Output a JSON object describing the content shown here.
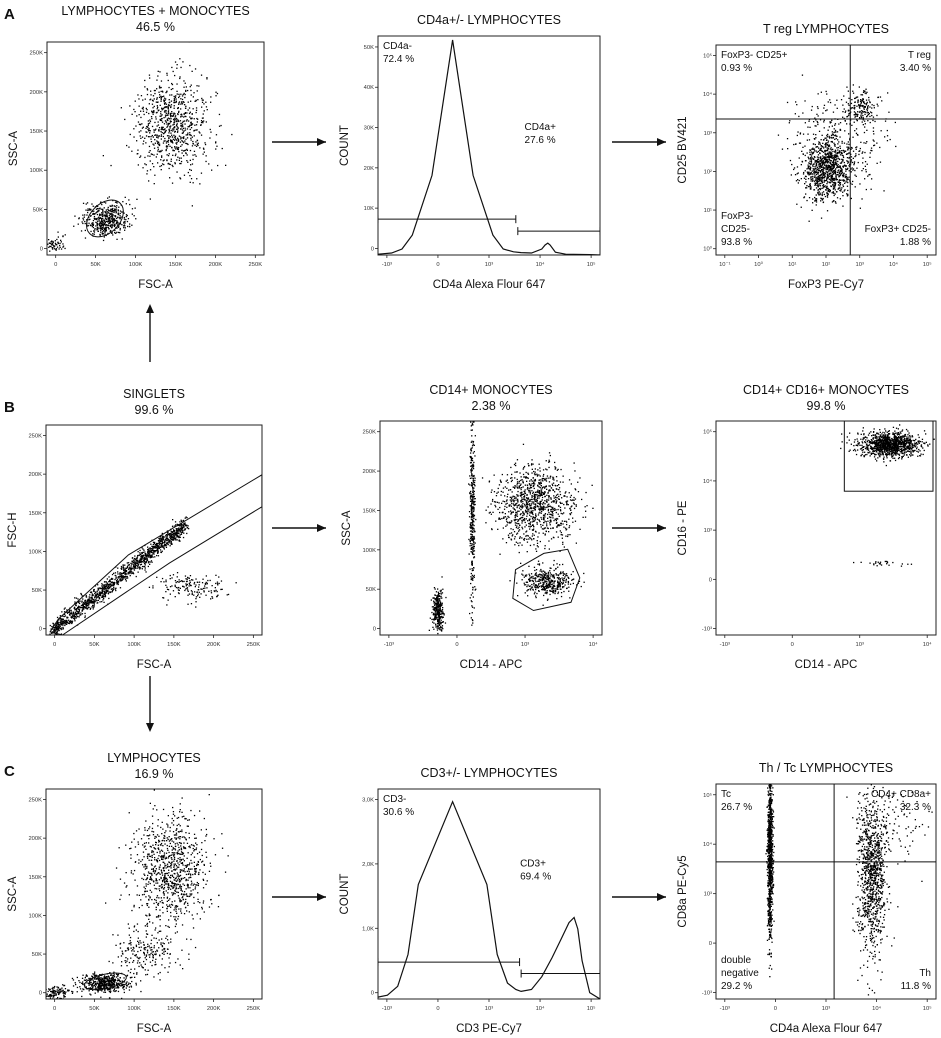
{
  "panel_labels": [
    "A",
    "B",
    "C"
  ],
  "chart_data": [
    {
      "id": "a1",
      "type": "scatter",
      "title": "LYMPHOCYTES + MONOCYTES",
      "subtitle": "46.5 %",
      "xlabel": "FSC-A",
      "ylabel": "SSC-A",
      "xscale": "linear",
      "yscale": "linear",
      "xlim": [
        0,
        262144
      ],
      "ylim": [
        0,
        262144
      ],
      "xticks": [
        "0",
        "50K",
        "100K",
        "150K",
        "200K",
        "250K"
      ],
      "yticks": [
        "0",
        "50K",
        "100K",
        "150K",
        "200K",
        "250K"
      ],
      "populations": [
        {
          "name": "lymphocytes",
          "cx": 70000,
          "cy": 45000,
          "sx": 14000,
          "sy": 10000,
          "n": 450
        },
        {
          "name": "monocytes",
          "cx": 150000,
          "cy": 160000,
          "sx": 22000,
          "sy": 30000,
          "n": 800
        },
        {
          "name": "debris",
          "cx": 10000,
          "cy": 12000,
          "sx": 6000,
          "sy": 6000,
          "n": 60
        }
      ],
      "gates": [
        {
          "type": "ellipse",
          "cx": 70000,
          "cy": 45000,
          "rx": 26000,
          "ry": 18000,
          "rotation": -45
        }
      ],
      "gate_labels": []
    },
    {
      "id": "a2",
      "type": "histogram",
      "title": "CD4a+/- LYMPHOCYTES",
      "xlabel": "CD4a Alexa Flour 647",
      "ylabel": "COUNT",
      "xscale": "logicle",
      "yscale": "linear",
      "xlim": [
        -1500,
        200000
      ],
      "ylim": [
        0,
        55000
      ],
      "xticks": [
        "-10³",
        "0",
        "10³",
        "10⁴",
        "10⁵"
      ],
      "yticks": [
        "0",
        "10K",
        "20K",
        "30K",
        "40K",
        "50K"
      ],
      "curve": {
        "x": [
          -1500,
          -600,
          -300,
          -150,
          -60,
          0,
          60,
          150,
          300,
          600,
          1000,
          2000,
          4000,
          5000,
          6000,
          7000,
          10000,
          20000,
          100000,
          200000
        ],
        "y": [
          200,
          500,
          1500,
          5000,
          20000,
          54000,
          20000,
          5000,
          1500,
          800,
          600,
          500,
          1500,
          2500,
          3000,
          2500,
          700,
          200,
          100,
          0
        ]
      },
      "gates": [
        {
          "label": "CD4a-",
          "percent": "72.4 %",
          "range": [
            -1500,
            700
          ],
          "y": 9000
        },
        {
          "label": "CD4a+",
          "percent": "27.6 %",
          "range": [
            800,
            200000
          ],
          "y": 6000
        }
      ],
      "gate_labels": [
        {
          "text": "CD4a-",
          "pos": "top-left",
          "align": "left"
        },
        {
          "text": "72.4 %",
          "pos": "top-left-2",
          "align": "left"
        },
        {
          "text": "CD4a+",
          "pos": "mid-right",
          "align": "left"
        },
        {
          "text": "27.6 %",
          "pos": "mid-right-2",
          "align": "left"
        }
      ]
    },
    {
      "id": "a3",
      "type": "scatter",
      "title": "T reg LYMPHOCYTES",
      "xlabel": "FoxP3 PE-Cy7",
      "ylabel": "CD25 BV421",
      "xscale": "logicle",
      "yscale": "logicle",
      "xlim": [
        -1000,
        200000
      ],
      "ylim": [
        -1000,
        200000
      ],
      "xticks": [
        "10⁻¹",
        "10⁰",
        "10¹",
        "10²",
        "10³",
        "10⁴",
        "10⁵"
      ],
      "yticks": [
        "10⁰",
        "10¹",
        "10²",
        "10³",
        "10⁴",
        "10⁵"
      ],
      "populations": [
        {
          "name": "FoxP3- CD25-",
          "cx": 150,
          "cy": 60,
          "sx": 0.35,
          "sy": 0.45,
          "n": 900,
          "log": true
        },
        {
          "name": "T reg",
          "cx": 1500,
          "cy": 2500,
          "sx": 0.2,
          "sy": 0.25,
          "n": 150,
          "log": true
        },
        {
          "name": "spread",
          "cx": 300,
          "cy": 300,
          "sx": 0.7,
          "sy": 0.7,
          "n": 300,
          "log": true
        }
      ],
      "gates": [
        {
          "type": "quadrant",
          "x": 700,
          "y": 1200
        }
      ],
      "gate_labels": [
        {
          "text": "FoxP3- CD25+",
          "pos": "top-left",
          "align": "left"
        },
        {
          "text": "0.93 %",
          "pos": "top-left-2",
          "align": "left"
        },
        {
          "text": "T reg",
          "pos": "top-right",
          "align": "right"
        },
        {
          "text": "3.40 %",
          "pos": "top-right-2",
          "align": "right"
        },
        {
          "text": "FoxP3-",
          "pos": "bottom-left-0",
          "align": "left"
        },
        {
          "text": "CD25-",
          "pos": "bottom-left-1",
          "align": "left"
        },
        {
          "text": "93.8 %",
          "pos": "bottom-left-2",
          "align": "left"
        },
        {
          "text": "FoxP3+ CD25-",
          "pos": "bottom-right-1",
          "align": "right"
        },
        {
          "text": "1.88 %",
          "pos": "bottom-right-2",
          "align": "right"
        }
      ]
    },
    {
      "id": "b1",
      "type": "scatter",
      "title": "SINGLETS",
      "subtitle": "99.6 %",
      "xlabel": "FSC-A",
      "ylabel": "FSC-H",
      "xscale": "linear",
      "yscale": "linear",
      "xlim": [
        0,
        262144
      ],
      "ylim": [
        0,
        262144
      ],
      "xticks": [
        "0",
        "50K",
        "100K",
        "150K",
        "200K",
        "250K"
      ],
      "yticks": [
        "0",
        "50K",
        "100K",
        "150K",
        "200K",
        "250K"
      ],
      "populations": [
        {
          "name": "singlets",
          "diag": true,
          "x0": 5000,
          "x1": 170000,
          "slope": 0.82,
          "spread": 6000,
          "n": 1300
        },
        {
          "name": "doublets",
          "cx": 175000,
          "cy": 60000,
          "sx": 22000,
          "sy": 9000,
          "n": 160
        }
      ],
      "gates": [
        {
          "type": "polygon",
          "points": [
            [
              5000,
              4000
            ],
            [
              15000,
              20000
            ],
            [
              100000,
              100000
            ],
            [
              262000,
              200000
            ],
            [
              262000,
              160000
            ],
            [
              150000,
              90000
            ],
            [
              20000,
              0
            ]
          ]
        }
      ],
      "gate_labels": []
    },
    {
      "id": "b2",
      "type": "scatter",
      "title": "CD14+ MONOCYTES",
      "subtitle": "2.38 %",
      "xlabel": "CD14 - APC",
      "ylabel": "SSC-A",
      "xscale": "logicle",
      "yscale": "linear",
      "xlim": [
        -1500,
        200000
      ],
      "ylim": [
        0,
        262144
      ],
      "xticks": [
        "-10³",
        "0",
        "10³",
        "10⁴"
      ],
      "yticks": [
        "0",
        "50K",
        "100K",
        "150K",
        "200K",
        "250K"
      ],
      "populations": [
        {
          "name": "granulocytes",
          "cx": 2000,
          "cy": 160000,
          "sx": 0.55,
          "sy": 24000,
          "n": 1000,
          "logx": true
        },
        {
          "name": "CD14+",
          "cx": 5000,
          "cy": 65000,
          "sx": 0.35,
          "sy": 9000,
          "n": 400,
          "logx": true
        },
        {
          "name": "neg",
          "cx": -50,
          "cy": 30000,
          "sx": 0.08,
          "sy": 12000,
          "n": 300,
          "logx": true
        },
        {
          "name": "stream",
          "cx": 50,
          "cy": 150000,
          "sx": 0.04,
          "sy": 60000,
          "n": 350,
          "logx": true
        }
      ],
      "gates": [
        {
          "type": "polygon",
          "points": [
            [
              600,
              80000
            ],
            [
              4000,
              100000
            ],
            [
              20000,
              105000
            ],
            [
              45000,
              70000
            ],
            [
              25000,
              40000
            ],
            [
              2000,
              30000
            ],
            [
              500,
              45000
            ]
          ]
        }
      ],
      "gate_labels": []
    },
    {
      "id": "b3",
      "type": "scatter",
      "title": "CD14+ CD16+ MONOCYTES",
      "subtitle": "99.8 %",
      "xlabel": "CD14 - APC",
      "ylabel": "CD16 - PE",
      "xscale": "logicle",
      "yscale": "logicle",
      "xlim": [
        -1500,
        200000
      ],
      "ylim": [
        -1500,
        200000
      ],
      "xticks": [
        "-10³",
        "0",
        "10³",
        "10⁴"
      ],
      "yticks": [
        "-10³",
        "0",
        "10³",
        "10⁴",
        "10⁵"
      ],
      "populations": [
        {
          "name": "CD14+CD16+",
          "cx": 8000,
          "cy": 40000,
          "sx": 0.45,
          "sy": 0.18,
          "n": 1100,
          "log": true
        },
        {
          "name": "stray",
          "cx": 5000,
          "cy": 0,
          "sx": 0.5,
          "sy": 0.05,
          "n": 25,
          "log": true
        }
      ],
      "gates": [
        {
          "type": "rect",
          "x0": 400,
          "x1": 200000,
          "y0": 1500,
          "y1": 200000
        }
      ],
      "gate_labels": []
    },
    {
      "id": "c1",
      "type": "scatter",
      "title": "LYMPHOCYTES",
      "subtitle": "16.9 %",
      "xlabel": "FSC-A",
      "ylabel": "SSC-A",
      "xscale": "linear",
      "yscale": "linear",
      "xlim": [
        0,
        262144
      ],
      "ylim": [
        0,
        262144
      ],
      "xticks": [
        "0",
        "50K",
        "100K",
        "150K",
        "200K",
        "250K"
      ],
      "yticks": [
        "0",
        "50K",
        "100K",
        "150K",
        "200K",
        "250K"
      ],
      "populations": [
        {
          "name": "lymphocytes",
          "cx": 70000,
          "cy": 20000,
          "sx": 14000,
          "sy": 6000,
          "n": 500
        },
        {
          "name": "monocytes",
          "cx": 150000,
          "cy": 160000,
          "sx": 22000,
          "sy": 35000,
          "n": 900
        },
        {
          "name": "bridge",
          "cx": 120000,
          "cy": 60000,
          "sx": 18000,
          "sy": 15000,
          "n": 200
        },
        {
          "name": "debris",
          "cx": 12000,
          "cy": 8000,
          "sx": 8000,
          "sy": 5000,
          "n": 120
        }
      ],
      "gates": [
        {
          "type": "ellipse",
          "cx": 72000,
          "cy": 22000,
          "rx": 26000,
          "ry": 9000,
          "rotation": -12
        }
      ],
      "gate_labels": []
    },
    {
      "id": "c2",
      "type": "histogram",
      "title": "CD3+/- LYMPHOCYTES",
      "xlabel": "CD3 PE-Cy7",
      "ylabel": "COUNT",
      "xscale": "logicle",
      "yscale": "linear",
      "xlim": [
        -1500,
        200000
      ],
      "ylim": [
        0,
        3300
      ],
      "xticks": [
        "-10³",
        "0",
        "10³",
        "10⁴",
        "10⁵"
      ],
      "yticks": [
        "0",
        "1,0K",
        "2,0K",
        "3,0K"
      ],
      "curve": {
        "x": [
          -1500,
          -800,
          -400,
          -200,
          -100,
          0,
          100,
          200,
          400,
          700,
          1000,
          2000,
          4000,
          8000,
          15000,
          25000,
          35000,
          45000,
          60000,
          100000,
          200000
        ],
        "y": [
          30,
          60,
          200,
          700,
          1800,
          3100,
          1800,
          700,
          250,
          150,
          120,
          150,
          350,
          650,
          950,
          1200,
          1280,
          1100,
          600,
          100,
          0
        ]
      },
      "gates": [
        {
          "label": "CD3-",
          "percent": "30.6 %",
          "range": [
            -1500,
            900
          ],
          "y": 580
        },
        {
          "label": "CD3+",
          "percent": "69.4 %",
          "range": [
            1000,
            200000
          ],
          "y": 400
        }
      ],
      "gate_labels": [
        {
          "text": "CD3-",
          "pos": "top-left",
          "align": "left"
        },
        {
          "text": "30.6 %",
          "pos": "top-left-2",
          "align": "left"
        },
        {
          "text": "CD3+",
          "pos": "mid-right",
          "align": "left"
        },
        {
          "text": "69.4 %",
          "pos": "mid-right-2",
          "align": "left"
        }
      ]
    },
    {
      "id": "c3",
      "type": "scatter",
      "title": "Th / Tc LYMPHOCYTES",
      "xlabel": "CD4a Alexa Flour 647",
      "ylabel": "CD8a PE-Cy5",
      "xscale": "logicle",
      "yscale": "logicle",
      "xlim": [
        -1500,
        200000
      ],
      "ylim": [
        -1500,
        200000
      ],
      "xticks": [
        "-10³",
        "0",
        "10³",
        "10⁴",
        "10⁵"
      ],
      "yticks": [
        "-10³",
        "0",
        "10³",
        "10⁴",
        "10⁵"
      ],
      "populations": [
        {
          "name": "Tc stream",
          "cx": -60,
          "cy": 1200,
          "sx": 0.04,
          "sy": 1.3,
          "n": 900,
          "log": true
        },
        {
          "name": "Th",
          "cx": 2500,
          "cy": 400,
          "sx": 0.22,
          "sy": 1.2,
          "n": 1000,
          "log": true
        },
        {
          "name": "sparse",
          "cx": 20000,
          "cy": 10000,
          "sx": 0.5,
          "sy": 0.6,
          "n": 80,
          "log": true
        }
      ],
      "gates": [
        {
          "type": "quadrant",
          "x": 200,
          "y": 900
        }
      ],
      "gate_labels": [
        {
          "text": "Tc",
          "pos": "top-left",
          "align": "left"
        },
        {
          "text": "26.7 %",
          "pos": "top-left-2",
          "align": "left"
        },
        {
          "text": "CD4+ CD8a+",
          "pos": "top-right",
          "align": "right"
        },
        {
          "text": "32.3 %",
          "pos": "top-right-2",
          "align": "right"
        },
        {
          "text": "double",
          "pos": "bottom-left-0",
          "align": "left"
        },
        {
          "text": "negative",
          "pos": "bottom-left-1",
          "align": "left"
        },
        {
          "text": "29.2 %",
          "pos": "bottom-left-2",
          "align": "left"
        },
        {
          "text": "Th",
          "pos": "bottom-right-1",
          "align": "right"
        },
        {
          "text": "11.8 %",
          "pos": "bottom-right-2",
          "align": "right"
        }
      ]
    }
  ]
}
